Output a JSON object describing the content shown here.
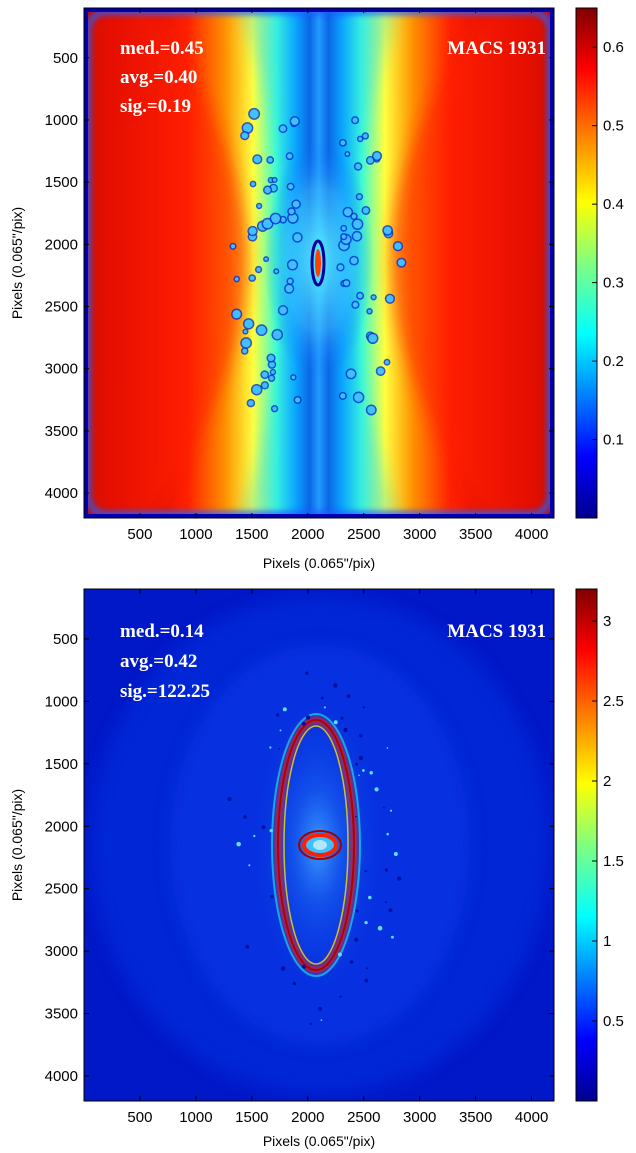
{
  "chart_data": [
    {
      "type": "heatmap",
      "title": "",
      "xlabel": "Pixels (0.065\"/pix)",
      "ylabel": "Pixels (0.065\"/pix)",
      "xlim": [
        0,
        4200
      ],
      "ylim": [
        100,
        4200
      ],
      "y_reversed": true,
      "xticks": [
        500,
        1000,
        1500,
        2000,
        2500,
        3000,
        3500,
        4000
      ],
      "yticks": [
        500,
        1000,
        1500,
        2000,
        2500,
        3000,
        3500,
        4000
      ],
      "colorbar": {
        "min": 0.0,
        "max": 0.65,
        "ticks": [
          0.1,
          0.2,
          0.3,
          0.4,
          0.5,
          0.6
        ],
        "colormap": "jet"
      },
      "annotations": {
        "stats": [
          "med.=0.45",
          "avg.=0.40",
          "sig.=0.19"
        ],
        "label": "MACS 1931"
      },
      "colors": [
        "#00008f",
        "#0000ff",
        "#0080ff",
        "#00ffff",
        "#80ff80",
        "#ffff00",
        "#ff8000",
        "#ff0000",
        "#800000"
      ]
    },
    {
      "type": "heatmap",
      "title": "",
      "xlabel": "Pixels (0.065\"/pix)",
      "ylabel": "Pixels (0.065\"/pix)",
      "xlim": [
        0,
        4200
      ],
      "ylim": [
        100,
        4200
      ],
      "y_reversed": true,
      "xticks": [
        500,
        1000,
        1500,
        2000,
        2500,
        3000,
        3500,
        4000
      ],
      "yticks": [
        500,
        1000,
        1500,
        2000,
        2500,
        3000,
        3500,
        4000
      ],
      "colorbar": {
        "min": 0.0,
        "max": 3.2,
        "ticks": [
          0.5,
          1,
          1.5,
          2,
          2.5,
          3
        ],
        "colormap": "jet"
      },
      "annotations": {
        "stats": [
          "med.=0.14",
          "avg.=0.42",
          "sig.=122.25"
        ],
        "label": "MACS 1931"
      },
      "colors": [
        "#00008f",
        "#0000ff",
        "#0080ff",
        "#00ffff",
        "#80ff80",
        "#ffff00",
        "#ff8000",
        "#ff0000",
        "#800000"
      ]
    }
  ]
}
